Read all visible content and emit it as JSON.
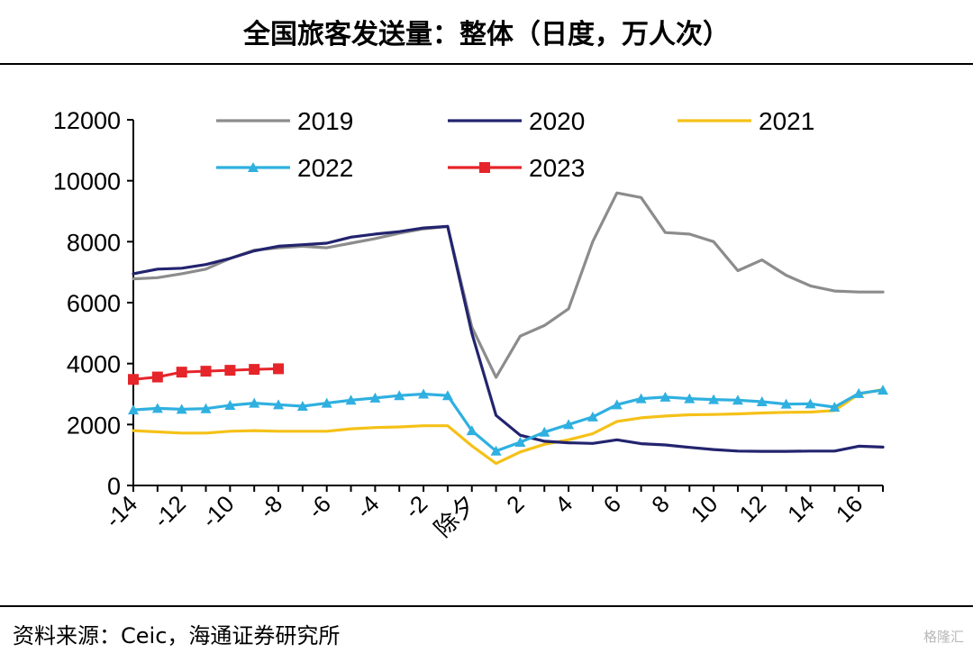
{
  "header": {
    "title": "全国旅客发送量：整体（日度，万人次）"
  },
  "footer": {
    "source": "资料来源：Ceic，海通证券研究所",
    "watermark": "格隆汇"
  },
  "chart_data": {
    "type": "line",
    "title": "全国旅客发送量：整体（日度，万人次）",
    "xlabel": "",
    "ylabel": "",
    "xlim": [
      -14,
      17
    ],
    "ylim": [
      0,
      12000
    ],
    "yticks": [
      0,
      2000,
      4000,
      6000,
      8000,
      10000,
      12000
    ],
    "xticks": [
      {
        "v": -14,
        "label": "-14"
      },
      {
        "v": -12,
        "label": "-12"
      },
      {
        "v": -10,
        "label": "-10"
      },
      {
        "v": -8,
        "label": "-8"
      },
      {
        "v": -6,
        "label": "-6"
      },
      {
        "v": -4,
        "label": "-4"
      },
      {
        "v": -2,
        "label": "-2"
      },
      {
        "v": 0,
        "label": "除夕"
      },
      {
        "v": 2,
        "label": "2"
      },
      {
        "v": 4,
        "label": "4"
      },
      {
        "v": 6,
        "label": "6"
      },
      {
        "v": 8,
        "label": "8"
      },
      {
        "v": 10,
        "label": "10"
      },
      {
        "v": 12,
        "label": "12"
      },
      {
        "v": 14,
        "label": "14"
      },
      {
        "v": 16,
        "label": "16"
      }
    ],
    "grid": false,
    "legend": "top",
    "colors": {
      "2019": "#8c8c8c",
      "2020": "#23246e",
      "2021": "#f5c118",
      "2022": "#2fb0e0",
      "2023": "#e5252a"
    },
    "series": [
      {
        "name": "2019",
        "x": [
          -14,
          -13,
          -12,
          -11,
          -10,
          -9,
          -8,
          -7,
          -6,
          -5,
          -4,
          -3,
          -2,
          -1,
          0,
          1,
          2,
          3,
          4,
          5,
          6,
          7,
          8,
          9,
          10,
          11,
          12,
          13,
          14,
          15,
          16,
          17
        ],
        "values": [
          6780,
          6820,
          6950,
          7100,
          7450,
          7720,
          7800,
          7850,
          7800,
          7950,
          8100,
          8280,
          8420,
          8500,
          5200,
          3550,
          4900,
          5250,
          5800,
          8000,
          9600,
          9450,
          8300,
          8250,
          8000,
          7050,
          7400,
          6900,
          6550,
          6380,
          6350,
          6350
        ]
      },
      {
        "name": "2020",
        "x": [
          -14,
          -13,
          -12,
          -11,
          -10,
          -9,
          -8,
          -7,
          -6,
          -5,
          -4,
          -3,
          -2,
          -1,
          0,
          1,
          2,
          3,
          4,
          5,
          6,
          7,
          8,
          9,
          10,
          11,
          12,
          13,
          14,
          15,
          16,
          17
        ],
        "values": [
          6950,
          7100,
          7130,
          7250,
          7450,
          7700,
          7850,
          7900,
          7950,
          8150,
          8250,
          8330,
          8450,
          8500,
          5000,
          2300,
          1650,
          1450,
          1400,
          1380,
          1500,
          1370,
          1330,
          1250,
          1180,
          1130,
          1120,
          1120,
          1130,
          1130,
          1290,
          1260
        ]
      },
      {
        "name": "2021",
        "x": [
          -14,
          -13,
          -12,
          -11,
          -10,
          -9,
          -8,
          -7,
          -6,
          -5,
          -4,
          -3,
          -2,
          -1,
          0,
          1,
          2,
          3,
          4,
          5,
          6,
          7,
          8,
          9,
          10,
          11,
          12,
          13,
          14,
          15,
          16,
          17
        ],
        "values": [
          1800,
          1760,
          1720,
          1720,
          1780,
          1800,
          1780,
          1780,
          1780,
          1860,
          1900,
          1920,
          1960,
          1960,
          1300,
          720,
          1100,
          1350,
          1500,
          1700,
          2100,
          2220,
          2280,
          2320,
          2330,
          2350,
          2380,
          2400,
          2410,
          2460,
          3000,
          3150
        ]
      },
      {
        "name": "2022",
        "x": [
          -14,
          -13,
          -12,
          -11,
          -10,
          -9,
          -8,
          -7,
          -6,
          -5,
          -4,
          -3,
          -2,
          -1,
          0,
          1,
          2,
          3,
          4,
          5,
          6,
          7,
          8,
          9,
          10,
          11,
          12,
          13,
          14,
          15,
          16,
          17
        ],
        "values": [
          2480,
          2530,
          2500,
          2520,
          2630,
          2700,
          2650,
          2600,
          2700,
          2800,
          2870,
          2950,
          3000,
          2950,
          1800,
          1130,
          1420,
          1750,
          2000,
          2250,
          2650,
          2850,
          2900,
          2850,
          2820,
          2800,
          2750,
          2670,
          2680,
          2570,
          3020,
          3130
        ]
      },
      {
        "name": "2023",
        "x": [
          -14,
          -13,
          -12,
          -11,
          -10,
          -9,
          -8
        ],
        "values": [
          3480,
          3560,
          3720,
          3750,
          3780,
          3810,
          3830
        ]
      }
    ]
  }
}
